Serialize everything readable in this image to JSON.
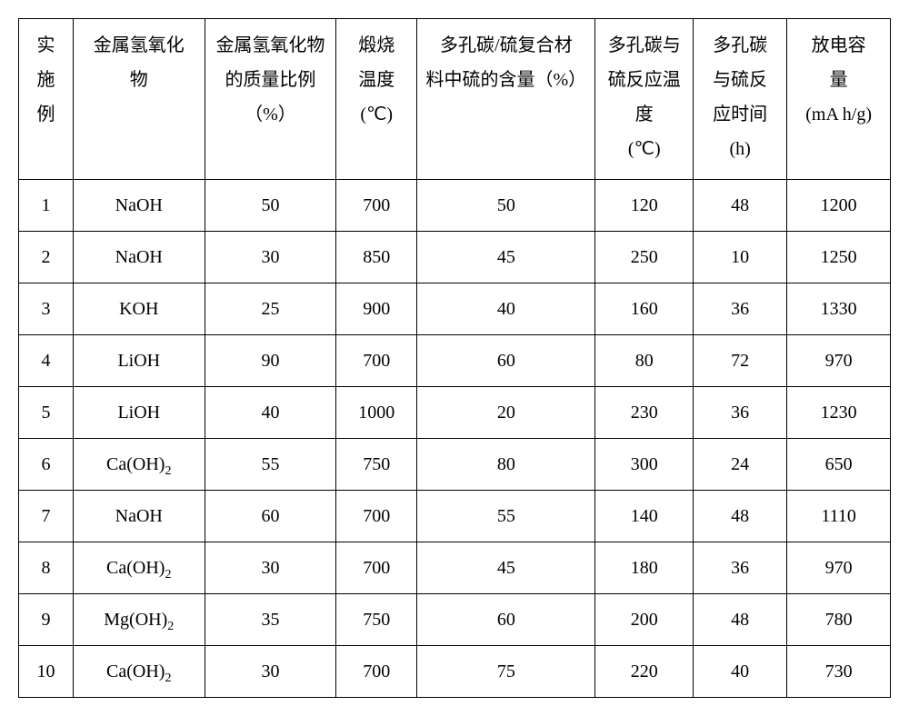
{
  "table": {
    "columns": [
      "实施例",
      "金属氢氧化物",
      "金属氢氧化物的质量比例（%）",
      "煅烧温度(℃)",
      "多孔碳/硫复合材料中硫的含量（%）",
      "多孔碳与硫反应温度(℃)",
      "多孔碳与硫反应时间(h)",
      "放电容量(mA h/g)"
    ],
    "col_widths": [
      "w0",
      "w1",
      "w2",
      "w3",
      "w4",
      "w5",
      "w6",
      "w7"
    ],
    "rows": [
      [
        "1",
        "NaOH",
        "50",
        "700",
        "50",
        "120",
        "48",
        "1200"
      ],
      [
        "2",
        "NaOH",
        "30",
        "850",
        "45",
        "250",
        "10",
        "1250"
      ],
      [
        "3",
        "KOH",
        "25",
        "900",
        "40",
        "160",
        "36",
        "1330"
      ],
      [
        "4",
        "LiOH",
        "90",
        "700",
        "60",
        "80",
        "72",
        "970"
      ],
      [
        "5",
        "LiOH",
        "40",
        "1000",
        "20",
        "230",
        "36",
        "1230"
      ],
      [
        "6",
        "Ca(OH)₂",
        "55",
        "750",
        "80",
        "300",
        "24",
        "650"
      ],
      [
        "7",
        "NaOH",
        "60",
        "700",
        "55",
        "140",
        "48",
        "1110"
      ],
      [
        "8",
        "Ca(OH)₂",
        "30",
        "700",
        "45",
        "180",
        "36",
        "970"
      ],
      [
        "9",
        "Mg(OH)₂",
        "35",
        "750",
        "60",
        "200",
        "48",
        "780"
      ],
      [
        "10",
        "Ca(OH)₂",
        "30",
        "700",
        "75",
        "220",
        "40",
        "730"
      ]
    ],
    "header_lines": [
      [
        "实",
        "施",
        "例"
      ],
      [
        "金属氢氧化",
        "物"
      ],
      [
        "金属氢氧化物",
        "的质量比例",
        "（%）"
      ],
      [
        "煅烧",
        "温度",
        "(℃)"
      ],
      [
        "多孔碳/硫复合材",
        "料中硫的含量（%）"
      ],
      [
        "多孔碳与",
        "硫反应温",
        "度",
        "(℃)"
      ],
      [
        "多孔碳",
        "与硫反",
        "应时间",
        "(h)"
      ],
      [
        "放电容",
        "量",
        "(mA h/g)"
      ]
    ],
    "border_color": "#000000",
    "background_color": "#ffffff",
    "font_size": 20
  }
}
